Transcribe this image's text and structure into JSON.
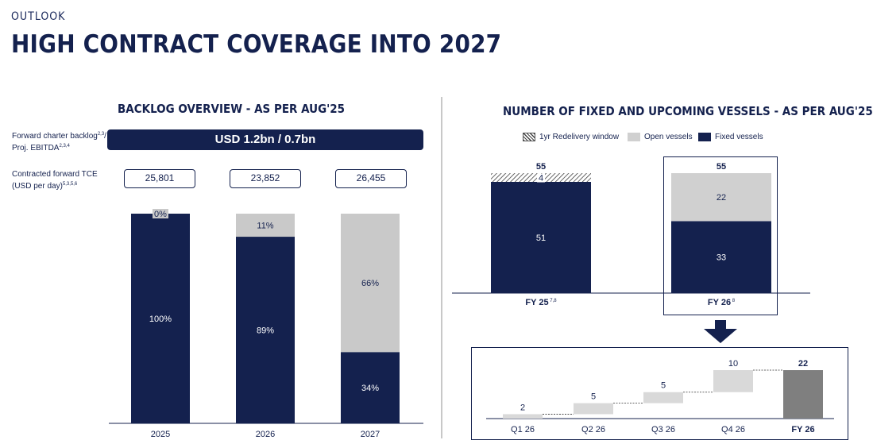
{
  "header": {
    "eyebrow": "OUTLOOK",
    "title": "HIGH CONTRACT COVERAGE INTO 2027"
  },
  "left_panel": {
    "title": "BACKLOG OVERVIEW - AS PER AUG'25",
    "backlog_label": "Forward charter backlog",
    "backlog_label_sup": "2,3",
    "backlog_label_rest": "/ Proj. EBITDA",
    "backlog_label_sup2": "2,3,4",
    "backlog_value": "USD 1.2bn / 0.7bn",
    "tce_label": "Contracted forward TCE (USD per day)",
    "tce_label_sup": "5,3,5,6",
    "tce_values": [
      "25,801",
      "23,852",
      "26,455"
    ]
  },
  "right_panel": {
    "title": "NUMBER OF FIXED AND UPCOMING VESSELS - AS PER AUG'25",
    "legend": [
      {
        "name": "1yr Redelivery window",
        "icon": "hatch-swatch"
      },
      {
        "name": "Open vessels",
        "color": "#d0d0d0"
      },
      {
        "name": "Fixed vessels",
        "color": "#14214e"
      }
    ]
  },
  "chart_data": [
    {
      "type": "bar",
      "stacked": true,
      "percent": true,
      "categories": [
        "2025",
        "2026",
        "2027"
      ],
      "series": [
        {
          "name": "contracted",
          "values": [
            100,
            89,
            34
          ],
          "labels": [
            "100%",
            "89%",
            "34%"
          ],
          "color": "#14214e"
        },
        {
          "name": "open",
          "values": [
            0,
            11,
            66
          ],
          "labels": [
            "0%",
            "11%",
            "66%"
          ],
          "color": "#c9c9c9"
        }
      ],
      "ylim": [
        0,
        100
      ]
    },
    {
      "type": "bar",
      "stacked": true,
      "categories": [
        "FY 25",
        "FY 26"
      ],
      "category_sups": [
        "7,8",
        "8"
      ],
      "totals": [
        "55",
        "55"
      ],
      "series": [
        {
          "name": "Fixed vessels",
          "values": [
            51,
            33
          ],
          "color": "#14214e"
        },
        {
          "name": "Open vessels",
          "values": [
            0,
            22
          ],
          "color": "#d0d0d0"
        },
        {
          "name": "1yr Redelivery window",
          "values": [
            4,
            0
          ],
          "pattern": "hatch"
        }
      ],
      "ylim": [
        0,
        55
      ]
    },
    {
      "type": "bar",
      "waterfall": true,
      "categories": [
        "Q1 26",
        "Q2 26",
        "Q3 26",
        "Q4 26",
        "FY 26"
      ],
      "values": [
        2,
        5,
        5,
        10,
        22
      ],
      "total_index": 4,
      "ylim": [
        0,
        22
      ]
    }
  ]
}
